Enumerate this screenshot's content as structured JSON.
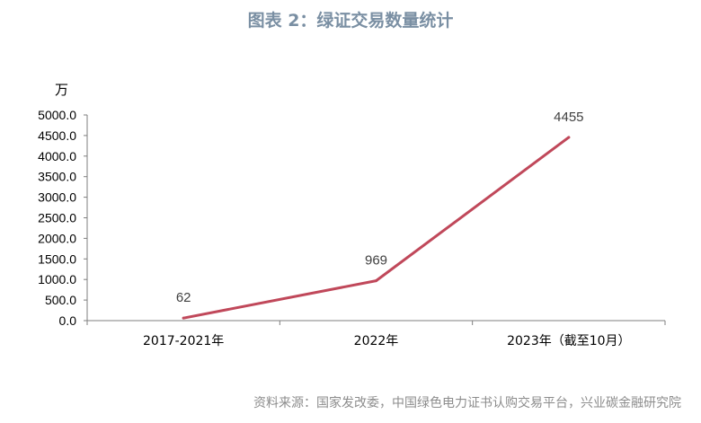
{
  "title": "图表 2：绿证交易数量统计",
  "source": "资料来源：国家发改委，中国绿色电力证书认购交易平台，兴业碳金融研究院",
  "colors": {
    "line": "#c0485a",
    "title": "#7a8fa3",
    "axis": "#7f7f7f"
  },
  "chart_data": {
    "type": "line",
    "title": "图表 2：绿证交易数量统计",
    "ylabel": "万",
    "xlabel": "",
    "categories": [
      "2017-2021年",
      "2022年",
      "2023年（截至10月）"
    ],
    "values": [
      62,
      969,
      4455
    ],
    "data_labels": [
      "62",
      "969",
      "4455"
    ],
    "ylim": [
      0,
      5000
    ],
    "yticks": [
      "0.0",
      "500.0",
      "1000.0",
      "1500.0",
      "2000.0",
      "2500.0",
      "3000.0",
      "3500.0",
      "4000.0",
      "4500.0",
      "5000.0"
    ],
    "grid": false,
    "legend": "none"
  }
}
